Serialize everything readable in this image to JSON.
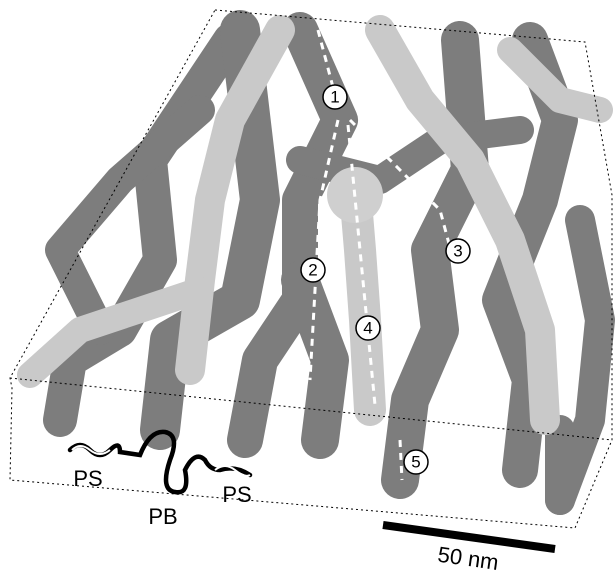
{
  "labels": {
    "paths": [
      "1",
      "2",
      "3",
      "4",
      "5"
    ],
    "polymer": [
      "PS",
      "PB",
      "PS"
    ]
  },
  "scale_bar": {
    "label": "50 nm"
  }
}
